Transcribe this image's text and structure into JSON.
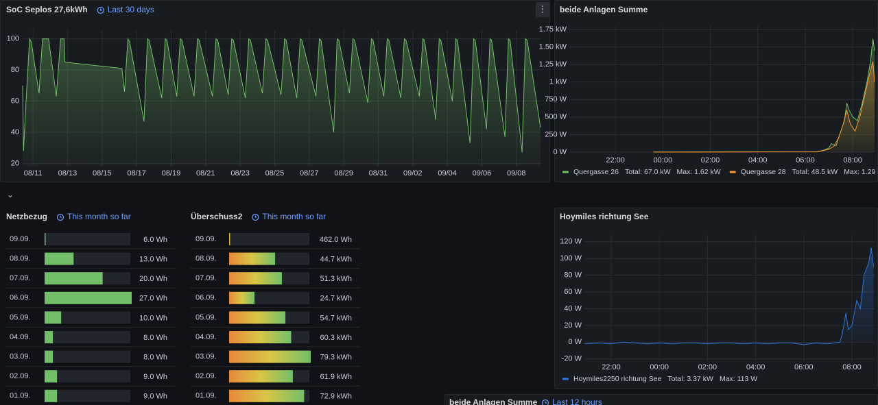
{
  "chart_data": [
    {
      "type": "line",
      "title": "SoC Seplos 27,6kWh",
      "time_range": "Last 30 days",
      "xlim": [
        10.4,
        40.4
      ],
      "ylim": [
        18,
        106
      ],
      "grid": true,
      "xticks": [
        {
          "value": 11,
          "label": "08/11"
        },
        {
          "value": 13,
          "label": "08/13"
        },
        {
          "value": 15,
          "label": "08/15"
        },
        {
          "value": 17,
          "label": "08/17"
        },
        {
          "value": 19,
          "label": "08/19"
        },
        {
          "value": 21,
          "label": "08/21"
        },
        {
          "value": 23,
          "label": "08/23"
        },
        {
          "value": 25,
          "label": "08/25"
        },
        {
          "value": 27,
          "label": "08/27"
        },
        {
          "value": 29,
          "label": "08/29"
        },
        {
          "value": 31,
          "label": "08/31"
        },
        {
          "value": 33,
          "label": "09/02"
        },
        {
          "value": 35,
          "label": "09/04"
        },
        {
          "value": 37,
          "label": "09/06"
        },
        {
          "value": 39,
          "label": "09/08"
        }
      ],
      "yticks": [
        20,
        40,
        60,
        80,
        100
      ],
      "series": [
        {
          "color": "#73bf69",
          "x": [
            10.4,
            10.45,
            10.6,
            10.8,
            10.9,
            11.35,
            11.55,
            11.9,
            12.35,
            12.6,
            12.8,
            12.85,
            16.15,
            16.3,
            16.5,
            16.6,
            17.43,
            17.63,
            17.73,
            18.46,
            18.66,
            18.76,
            19.33,
            19.53,
            19.63,
            20.33,
            20.53,
            20.63,
            21.4,
            21.6,
            21.7,
            22.31,
            22.51,
            22.61,
            23.3,
            23.5,
            23.6,
            24.29,
            24.49,
            24.59,
            25.37,
            25.57,
            25.67,
            26.28,
            26.48,
            26.58,
            27.39,
            27.59,
            27.69,
            28.42,
            28.62,
            28.72,
            29.33,
            29.53,
            29.63,
            30.4,
            30.6,
            30.7,
            31.32,
            31.52,
            31.62,
            32.31,
            32.51,
            32.61,
            33.38,
            33.58,
            33.68,
            34.33,
            34.53,
            34.63,
            35.29,
            35.49,
            35.59,
            36.32,
            36.52,
            36.62,
            37.27,
            37.47,
            37.57,
            38.34,
            38.54,
            38.64,
            39.33,
            39.53,
            39.63,
            40.4
          ],
          "values": [
            70,
            28,
            60,
            100,
            98,
            65,
            100,
            100,
            63,
            100,
            100,
            85,
            81,
            66,
            100,
            98,
            47,
            100,
            99,
            62,
            100,
            99,
            63,
            100,
            99,
            63,
            100,
            99,
            63,
            100,
            99,
            64,
            100,
            99,
            62,
            100,
            99,
            65,
            100,
            99,
            64,
            100,
            99,
            62,
            100,
            99,
            63,
            100,
            99,
            40,
            100,
            99,
            65,
            100,
            99,
            59,
            100,
            99,
            63,
            100,
            99,
            62,
            100,
            99,
            63,
            100,
            99,
            48,
            100,
            99,
            60,
            100,
            99,
            33,
            100,
            99,
            42,
            100,
            99,
            37,
            100,
            99,
            27,
            100,
            99,
            43
          ]
        }
      ]
    },
    {
      "type": "line",
      "title": "beide Anlagen Summe",
      "xlim": [
        20.06,
        32.92
      ],
      "ylim": [
        -40,
        1800
      ],
      "grid": true,
      "xticks": [
        {
          "value": 22,
          "label": "22:00"
        },
        {
          "value": 24,
          "label": "00:00"
        },
        {
          "value": 26,
          "label": "02:00"
        },
        {
          "value": 28,
          "label": "04:00"
        },
        {
          "value": 30,
          "label": "06:00"
        },
        {
          "value": 32,
          "label": "08:00"
        }
      ],
      "yticks": [
        {
          "value": 0,
          "label": "0 W"
        },
        {
          "value": 250,
          "label": "250 W"
        },
        {
          "value": 500,
          "label": "500 W"
        },
        {
          "value": 750,
          "label": "750 W"
        },
        {
          "value": 1000,
          "label": "1 kW"
        },
        {
          "value": 1250,
          "label": "1.25 kW"
        },
        {
          "value": 1500,
          "label": "1.50 kW"
        },
        {
          "value": 1750,
          "label": "1.75 kW"
        }
      ],
      "series": [
        {
          "name": "Quergasse 26",
          "color": "#73bf69",
          "legend_stats": [
            "Total: 67.0 kW",
            "Max: 1.62 kW"
          ],
          "x": [
            23.6,
            30.5,
            30.8,
            31.0,
            31.1,
            31.3,
            31.5,
            31.65,
            31.75,
            31.85,
            32.0,
            32.2,
            32.4,
            32.6,
            32.75,
            32.85,
            32.92
          ],
          "values": [
            0,
            5,
            30,
            60,
            120,
            90,
            300,
            450,
            700,
            600,
            500,
            450,
            700,
            1000,
            1300,
            1620,
            1450
          ]
        },
        {
          "name": "Quergasse 28",
          "color": "#ff9830",
          "legend_stats": [
            "Total: 48.5 kW",
            "Max: 1.29 kW"
          ],
          "x": [
            23.6,
            30.5,
            31.0,
            31.2,
            31.4,
            31.6,
            31.75,
            31.9,
            32.1,
            32.3,
            32.5,
            32.7,
            32.85,
            32.92
          ],
          "values": [
            0,
            3,
            40,
            80,
            200,
            400,
            600,
            400,
            300,
            500,
            800,
            1100,
            1290,
            1000
          ]
        }
      ]
    },
    {
      "type": "line",
      "title": "Hoymiles richtung See",
      "xlim": [
        20.89,
        32.94
      ],
      "ylim": [
        -23,
        128
      ],
      "grid": true,
      "xticks": [
        {
          "value": 22,
          "label": "22:00"
        },
        {
          "value": 24,
          "label": "00:00"
        },
        {
          "value": 26,
          "label": "02:00"
        },
        {
          "value": 28,
          "label": "04:00"
        },
        {
          "value": 30,
          "label": "06:00"
        },
        {
          "value": 32,
          "label": "08:00"
        }
      ],
      "yticks": [
        {
          "value": -20,
          "label": "-20 W"
        },
        {
          "value": 0,
          "label": "0 W"
        },
        {
          "value": 20,
          "label": "20 W"
        },
        {
          "value": 40,
          "label": "40 W"
        },
        {
          "value": 60,
          "label": "60 W"
        },
        {
          "value": 80,
          "label": "80 W"
        },
        {
          "value": 100,
          "label": "100 W"
        },
        {
          "value": 120,
          "label": "120 W"
        }
      ],
      "series": [
        {
          "name": "Hoymiles2250 richtung See",
          "color": "#3274d9",
          "legend_stats": [
            "Total: 3.37 kW",
            "Max: 113 W"
          ],
          "x": [
            20.9,
            21.5,
            22.0,
            22.5,
            23.0,
            23.5,
            24.0,
            24.5,
            25.0,
            25.5,
            26.0,
            26.5,
            27.0,
            27.5,
            28.0,
            28.5,
            29.0,
            29.5,
            30.0,
            30.5,
            31.0,
            31.5,
            31.6,
            31.75,
            31.85,
            32.0,
            32.2,
            32.35,
            32.5,
            32.7,
            32.8,
            32.9
          ],
          "values": [
            -2,
            -1,
            -2,
            0,
            -1,
            -2,
            -1,
            -2,
            -1,
            -1,
            -2,
            -1,
            -1,
            -2,
            -1,
            -2,
            -1,
            -1,
            -3,
            -1,
            -2,
            0,
            10,
            35,
            15,
            20,
            50,
            40,
            80,
            95,
            113,
            90
          ]
        }
      ]
    },
    {
      "type": "bargauge",
      "title": "Netzbezug",
      "time_range": "This month so far",
      "categories": [
        "09.09.",
        "08.09.",
        "07.09.",
        "06.09.",
        "05.09.",
        "04.09.",
        "03.09.",
        "02.09.",
        "01.09."
      ],
      "values": [
        6,
        13,
        20,
        27,
        10,
        8,
        8,
        9,
        9
      ],
      "value_labels": [
        "6.0 Wh",
        "13.0 Wh",
        "20.0 Wh",
        "27.0 Wh",
        "10.0 Wh",
        "8.0 Wh",
        "8.0 Wh",
        "9.0 Wh",
        "9.0 Wh"
      ],
      "xlim": [
        6,
        27
      ],
      "color": "#73bf69"
    },
    {
      "type": "bargauge",
      "title": "Überschuss2",
      "time_range": "This month so far",
      "categories": [
        "09.09.",
        "08.09.",
        "07.09.",
        "06.09.",
        "05.09.",
        "04.09.",
        "03.09.",
        "02.09.",
        "01.09."
      ],
      "values": [
        0.462,
        44.7,
        51.3,
        24.7,
        54.7,
        60.3,
        79.3,
        61.9,
        72.9
      ],
      "value_labels": [
        "462.0 Wh",
        "44.7 kWh",
        "51.3 kWh",
        "24.7 kWh",
        "54.7 kWh",
        "60.3 kWh",
        "79.3 kWh",
        "61.9 kWh",
        "72.9 kWh"
      ],
      "xlim": [
        0,
        79.3
      ],
      "colors": [
        "#e8893a",
        "#d8c645",
        "#73bf69"
      ]
    }
  ],
  "cut_panel": {
    "title": "beide Anlagen Summe",
    "time_range": "Last 12 hours"
  }
}
